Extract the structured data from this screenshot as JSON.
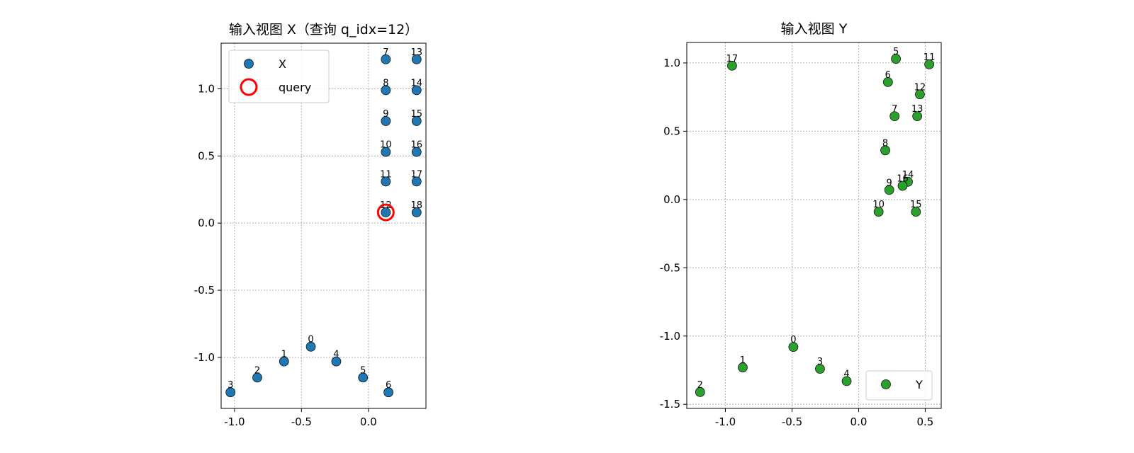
{
  "chart_data": [
    {
      "type": "scatter",
      "title": "输入视图 X（查询 q_idx=12）",
      "xlim": [
        -1.1,
        0.43
      ],
      "ylim": [
        -1.38,
        1.34
      ],
      "xticks": [
        -1.0,
        -0.5,
        0.0
      ],
      "xtick_labels": [
        "-1.0",
        "-0.5",
        "0.0"
      ],
      "yticks": [
        -1.0,
        -0.5,
        0.0,
        0.5,
        1.0
      ],
      "ytick_labels": [
        "-1.0",
        "-0.5",
        "0.0",
        "0.5",
        "1.0"
      ],
      "grid": true,
      "legend_position": "upper-left",
      "series": [
        {
          "name": "X",
          "color": "#1f77b4",
          "points": [
            {
              "label": "0",
              "x": -0.43,
              "y": -0.92
            },
            {
              "label": "1",
              "x": -0.63,
              "y": -1.03
            },
            {
              "label": "2",
              "x": -0.83,
              "y": -1.15
            },
            {
              "label": "3",
              "x": -1.03,
              "y": -1.26
            },
            {
              "label": "4",
              "x": -0.24,
              "y": -1.03
            },
            {
              "label": "5",
              "x": -0.04,
              "y": -1.15
            },
            {
              "label": "6",
              "x": 0.15,
              "y": -1.26
            },
            {
              "label": "7",
              "x": 0.13,
              "y": 1.22
            },
            {
              "label": "8",
              "x": 0.13,
              "y": 0.99
            },
            {
              "label": "9",
              "x": 0.13,
              "y": 0.76
            },
            {
              "label": "10",
              "x": 0.13,
              "y": 0.53
            },
            {
              "label": "11",
              "x": 0.13,
              "y": 0.31
            },
            {
              "label": "12",
              "x": 0.13,
              "y": 0.08
            },
            {
              "label": "13",
              "x": 0.36,
              "y": 1.22
            },
            {
              "label": "14",
              "x": 0.36,
              "y": 0.99
            },
            {
              "label": "15",
              "x": 0.36,
              "y": 0.76
            },
            {
              "label": "16",
              "x": 0.36,
              "y": 0.53
            },
            {
              "label": "17",
              "x": 0.36,
              "y": 0.31
            },
            {
              "label": "18",
              "x": 0.36,
              "y": 0.08
            }
          ]
        },
        {
          "name": "query",
          "color": "#ff0000",
          "marker": "ring",
          "points": [
            {
              "x": 0.13,
              "y": 0.08
            }
          ]
        }
      ]
    },
    {
      "type": "scatter",
      "title": "输入视图 Y",
      "xlim": [
        -1.29,
        0.62
      ],
      "ylim": [
        -1.53,
        1.15
      ],
      "xticks": [
        -1.0,
        -0.5,
        0.0,
        0.5
      ],
      "xtick_labels": [
        "-1.0",
        "-0.5",
        "0.0",
        "0.5"
      ],
      "yticks": [
        -1.5,
        -1.0,
        -0.5,
        0.0,
        0.5,
        1.0
      ],
      "ytick_labels": [
        "-1.5",
        "-1.0",
        "-0.5",
        "0.0",
        "0.5",
        "1.0"
      ],
      "grid": true,
      "legend_position": "lower-right",
      "series": [
        {
          "name": "Y",
          "color": "#2ca02c",
          "points": [
            {
              "label": "0",
              "x": -0.49,
              "y": -1.08
            },
            {
              "label": "1",
              "x": -0.87,
              "y": -1.23
            },
            {
              "label": "2",
              "x": -1.19,
              "y": -1.41
            },
            {
              "label": "3",
              "x": -0.29,
              "y": -1.24
            },
            {
              "label": "4",
              "x": -0.09,
              "y": -1.33
            },
            {
              "label": "5",
              "x": 0.28,
              "y": 1.03
            },
            {
              "label": "6",
              "x": 0.22,
              "y": 0.86
            },
            {
              "label": "7",
              "x": 0.27,
              "y": 0.61
            },
            {
              "label": "8",
              "x": 0.2,
              "y": 0.36
            },
            {
              "label": "9",
              "x": 0.23,
              "y": 0.07
            },
            {
              "label": "10",
              "x": 0.15,
              "y": -0.09
            },
            {
              "label": "11",
              "x": 0.53,
              "y": 0.99
            },
            {
              "label": "12",
              "x": 0.46,
              "y": 0.77
            },
            {
              "label": "13",
              "x": 0.44,
              "y": 0.61
            },
            {
              "label": "14",
              "x": 0.37,
              "y": 0.13
            },
            {
              "label": "15",
              "x": 0.43,
              "y": -0.09
            },
            {
              "label": "16",
              "x": 0.33,
              "y": 0.1
            },
            {
              "label": "17",
              "x": -0.95,
              "y": 0.98
            }
          ]
        }
      ]
    }
  ]
}
